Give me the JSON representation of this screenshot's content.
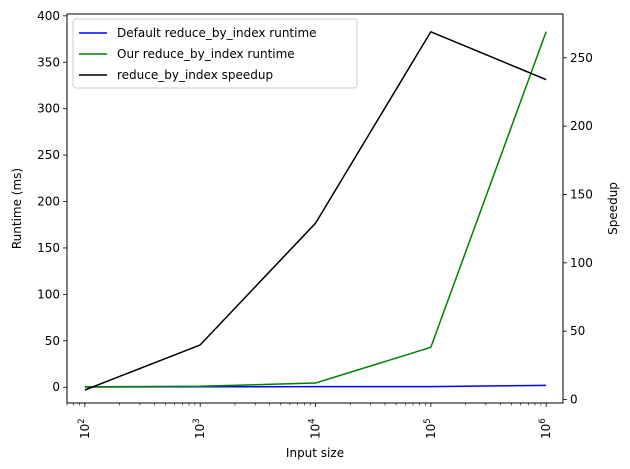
{
  "chart_data": {
    "type": "line",
    "xlabel": "Input size",
    "xscale": "log",
    "xlim": [
      70,
      1400000
    ],
    "x": [
      100,
      1000,
      10000,
      100000,
      1000000
    ],
    "x_tick_values": [
      100,
      1000,
      10000,
      100000,
      1000000
    ],
    "x_tick_labels": [
      {
        "base": "10",
        "exp": "2"
      },
      {
        "base": "10",
        "exp": "3"
      },
      {
        "base": "10",
        "exp": "4"
      },
      {
        "base": "10",
        "exp": "5"
      },
      {
        "base": "10",
        "exp": "6"
      }
    ],
    "y_left": {
      "label": "Runtime (ms)",
      "lim": [
        -17,
        402
      ],
      "ticks": [
        0,
        50,
        100,
        150,
        200,
        250,
        300,
        350,
        400
      ],
      "tick_labels": [
        "0",
        "50",
        "100",
        "150",
        "200",
        "250",
        "300",
        "350",
        "400"
      ]
    },
    "y_right": {
      "label": "Speedup",
      "lim": [
        -2.5,
        282
      ],
      "ticks": [
        0,
        50,
        100,
        150,
        200,
        250
      ],
      "tick_labels": [
        "0",
        "50",
        "100",
        "150",
        "200",
        "250"
      ]
    },
    "series": [
      {
        "name": "Default reduce_by_index runtime",
        "axis": "left",
        "color": "#0000ff",
        "values": [
          0.3,
          0.5,
          0.6,
          0.6,
          2.0
        ]
      },
      {
        "name": "Our reduce_by_index runtime",
        "axis": "left",
        "color": "#008000",
        "values": [
          0.5,
          1.0,
          4.5,
          43,
          383
        ]
      },
      {
        "name": "reduce_by_index speedup",
        "axis": "right",
        "color": "#000000",
        "values": [
          7,
          40,
          129,
          269,
          234
        ]
      }
    ],
    "legend": "upper-left",
    "grid": false
  }
}
